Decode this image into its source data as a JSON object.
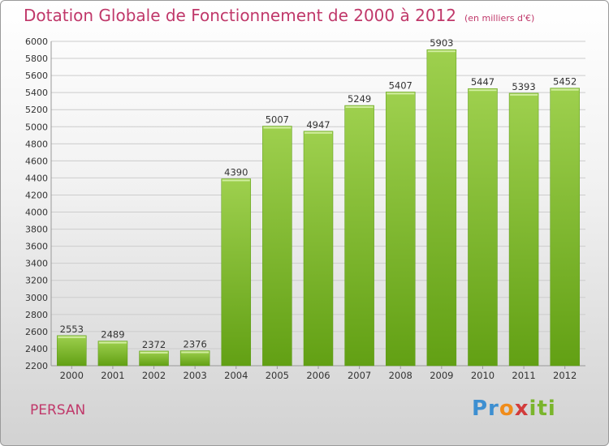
{
  "title": "Dotation Globale de Fonctionnement de 2000 à 2012",
  "unit": "(en milliers d'€)",
  "town": "PERSAN",
  "logo": {
    "p1": "Pr",
    "p2": "o",
    "p3": "x",
    "p4": "iti"
  },
  "colors": {
    "bar_top": "#9ed04e",
    "bar_bottom": "#62a014",
    "title": "#c0386a",
    "grid": "#cccccc"
  },
  "chart_data": {
    "type": "bar",
    "title": "Dotation Globale de Fonctionnement de 2000 à 2012",
    "categories": [
      "2000",
      "2001",
      "2002",
      "2003",
      "2004",
      "2005",
      "2006",
      "2007",
      "2008",
      "2009",
      "2010",
      "2011",
      "2012"
    ],
    "values": [
      2553,
      2489,
      2372,
      2376,
      4390,
      5007,
      4947,
      5249,
      5407,
      5903,
      5447,
      5393,
      5452
    ],
    "ylim": [
      2200,
      6000
    ],
    "ytick_step": 200,
    "grid": true
  }
}
